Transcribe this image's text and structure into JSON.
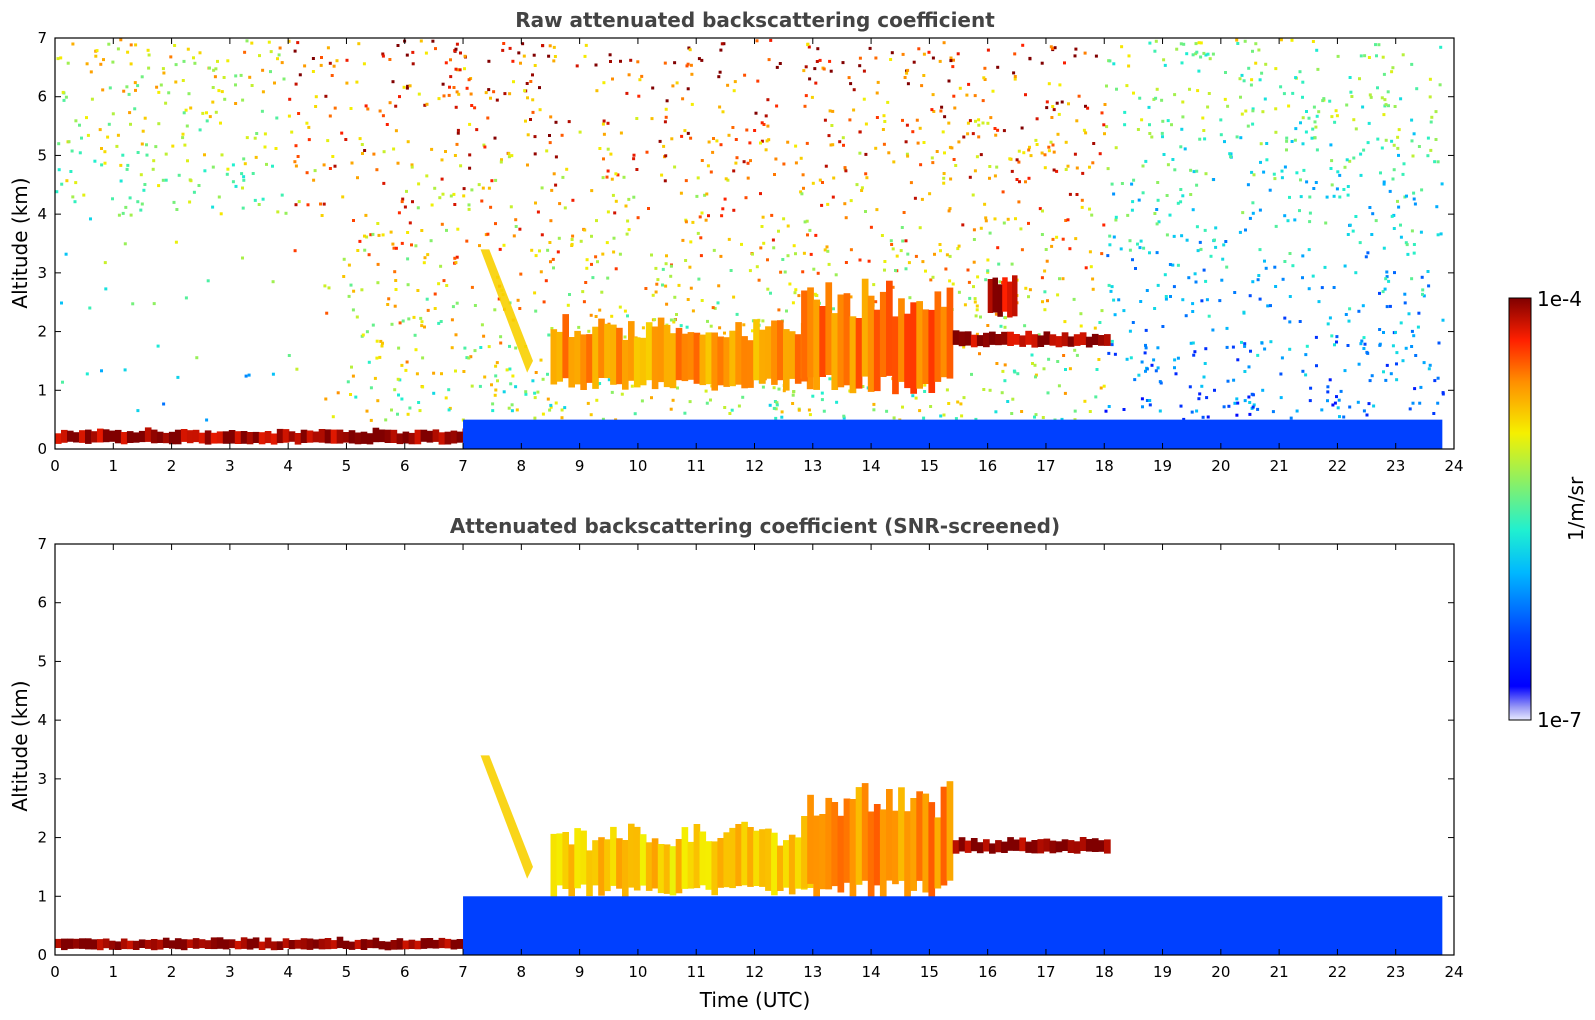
{
  "chart_data": {
    "type": "heatmap",
    "colorbar": {
      "label": "1/m/sr",
      "min_label": "1e-7",
      "max_label": "1e-4",
      "colormap": "jet"
    },
    "panels": [
      {
        "title": "Raw attenuated backscattering coefficient",
        "ylabel": "Altitude (km)",
        "xlabel": "",
        "xlim": [
          0,
          24
        ],
        "ylim": [
          0,
          7
        ],
        "xticks": [
          "0",
          "1",
          "2",
          "3",
          "4",
          "5",
          "6",
          "7",
          "8",
          "9",
          "10",
          "11",
          "12",
          "13",
          "14",
          "15",
          "16",
          "17",
          "18",
          "19",
          "20",
          "21",
          "22",
          "23",
          "24"
        ],
        "yticks": [
          "0",
          "1",
          "2",
          "3",
          "4",
          "5",
          "6",
          "7"
        ],
        "data_end_time": 23.8,
        "features": [
          {
            "name": "surface-layer",
            "time": [
              0,
              7.3
            ],
            "altitude": [
              0.1,
              0.35
            ],
            "level": 0.98
          },
          {
            "name": "virga-streak",
            "time": [
              7.3,
              8.2
            ],
            "altitude": [
              1.3,
              3.4
            ],
            "level": 0.72
          },
          {
            "name": "mid-cloud-band",
            "time": [
              8.5,
              13.0
            ],
            "altitude": [
              1.1,
              2.2
            ],
            "level": 0.78
          },
          {
            "name": "cloud-13-15",
            "time": [
              12.8,
              15.4
            ],
            "altitude": [
              1.1,
              2.8
            ],
            "level": 0.82
          },
          {
            "name": "thin-layer-15-18",
            "time": [
              15.4,
              18.1
            ],
            "altitude": [
              1.75,
              2.0
            ],
            "level": 0.98
          },
          {
            "name": "cloud-16h",
            "time": [
              16.0,
              16.5
            ],
            "altitude": [
              2.3,
              3.0
            ],
            "level": 0.96
          },
          {
            "name": "boundary-layer",
            "time": [
              7.0,
              23.8
            ],
            "altitude": [
              0,
              0.5
            ],
            "level": 0.2
          }
        ]
      },
      {
        "title": "Attenuated backscattering coefficient (SNR-screened)",
        "ylabel": "Altitude (km)",
        "xlabel": "Time (UTC)",
        "xlim": [
          0,
          24
        ],
        "ylim": [
          0,
          7
        ],
        "xticks": [
          "0",
          "1",
          "2",
          "3",
          "4",
          "5",
          "6",
          "7",
          "8",
          "9",
          "10",
          "11",
          "12",
          "13",
          "14",
          "15",
          "16",
          "17",
          "18",
          "19",
          "20",
          "21",
          "22",
          "23",
          "24"
        ],
        "yticks": [
          "0",
          "1",
          "2",
          "3",
          "4",
          "5",
          "6",
          "7"
        ],
        "data_end_time": 23.8,
        "features": [
          {
            "name": "surface-layer",
            "time": [
              0,
              7.3
            ],
            "altitude": [
              0.1,
              0.3
            ],
            "level": 1.0
          },
          {
            "name": "virga-streak",
            "time": [
              7.3,
              8.2
            ],
            "altitude": [
              1.3,
              3.4
            ],
            "level": 0.72
          },
          {
            "name": "mid-cloud-band",
            "time": [
              8.5,
              13.0
            ],
            "altitude": [
              1.1,
              2.2
            ],
            "level": 0.72
          },
          {
            "name": "cloud-13-15",
            "time": [
              12.8,
              15.4
            ],
            "altitude": [
              1.1,
              2.8
            ],
            "level": 0.8
          },
          {
            "name": "thin-layer-15-18",
            "time": [
              15.4,
              18.1
            ],
            "altitude": [
              1.75,
              2.0
            ],
            "level": 1.0
          },
          {
            "name": "boundary-layer",
            "time": [
              7.0,
              23.8
            ],
            "altitude": [
              0,
              1.0
            ],
            "level": 0.2
          }
        ]
      }
    ]
  }
}
